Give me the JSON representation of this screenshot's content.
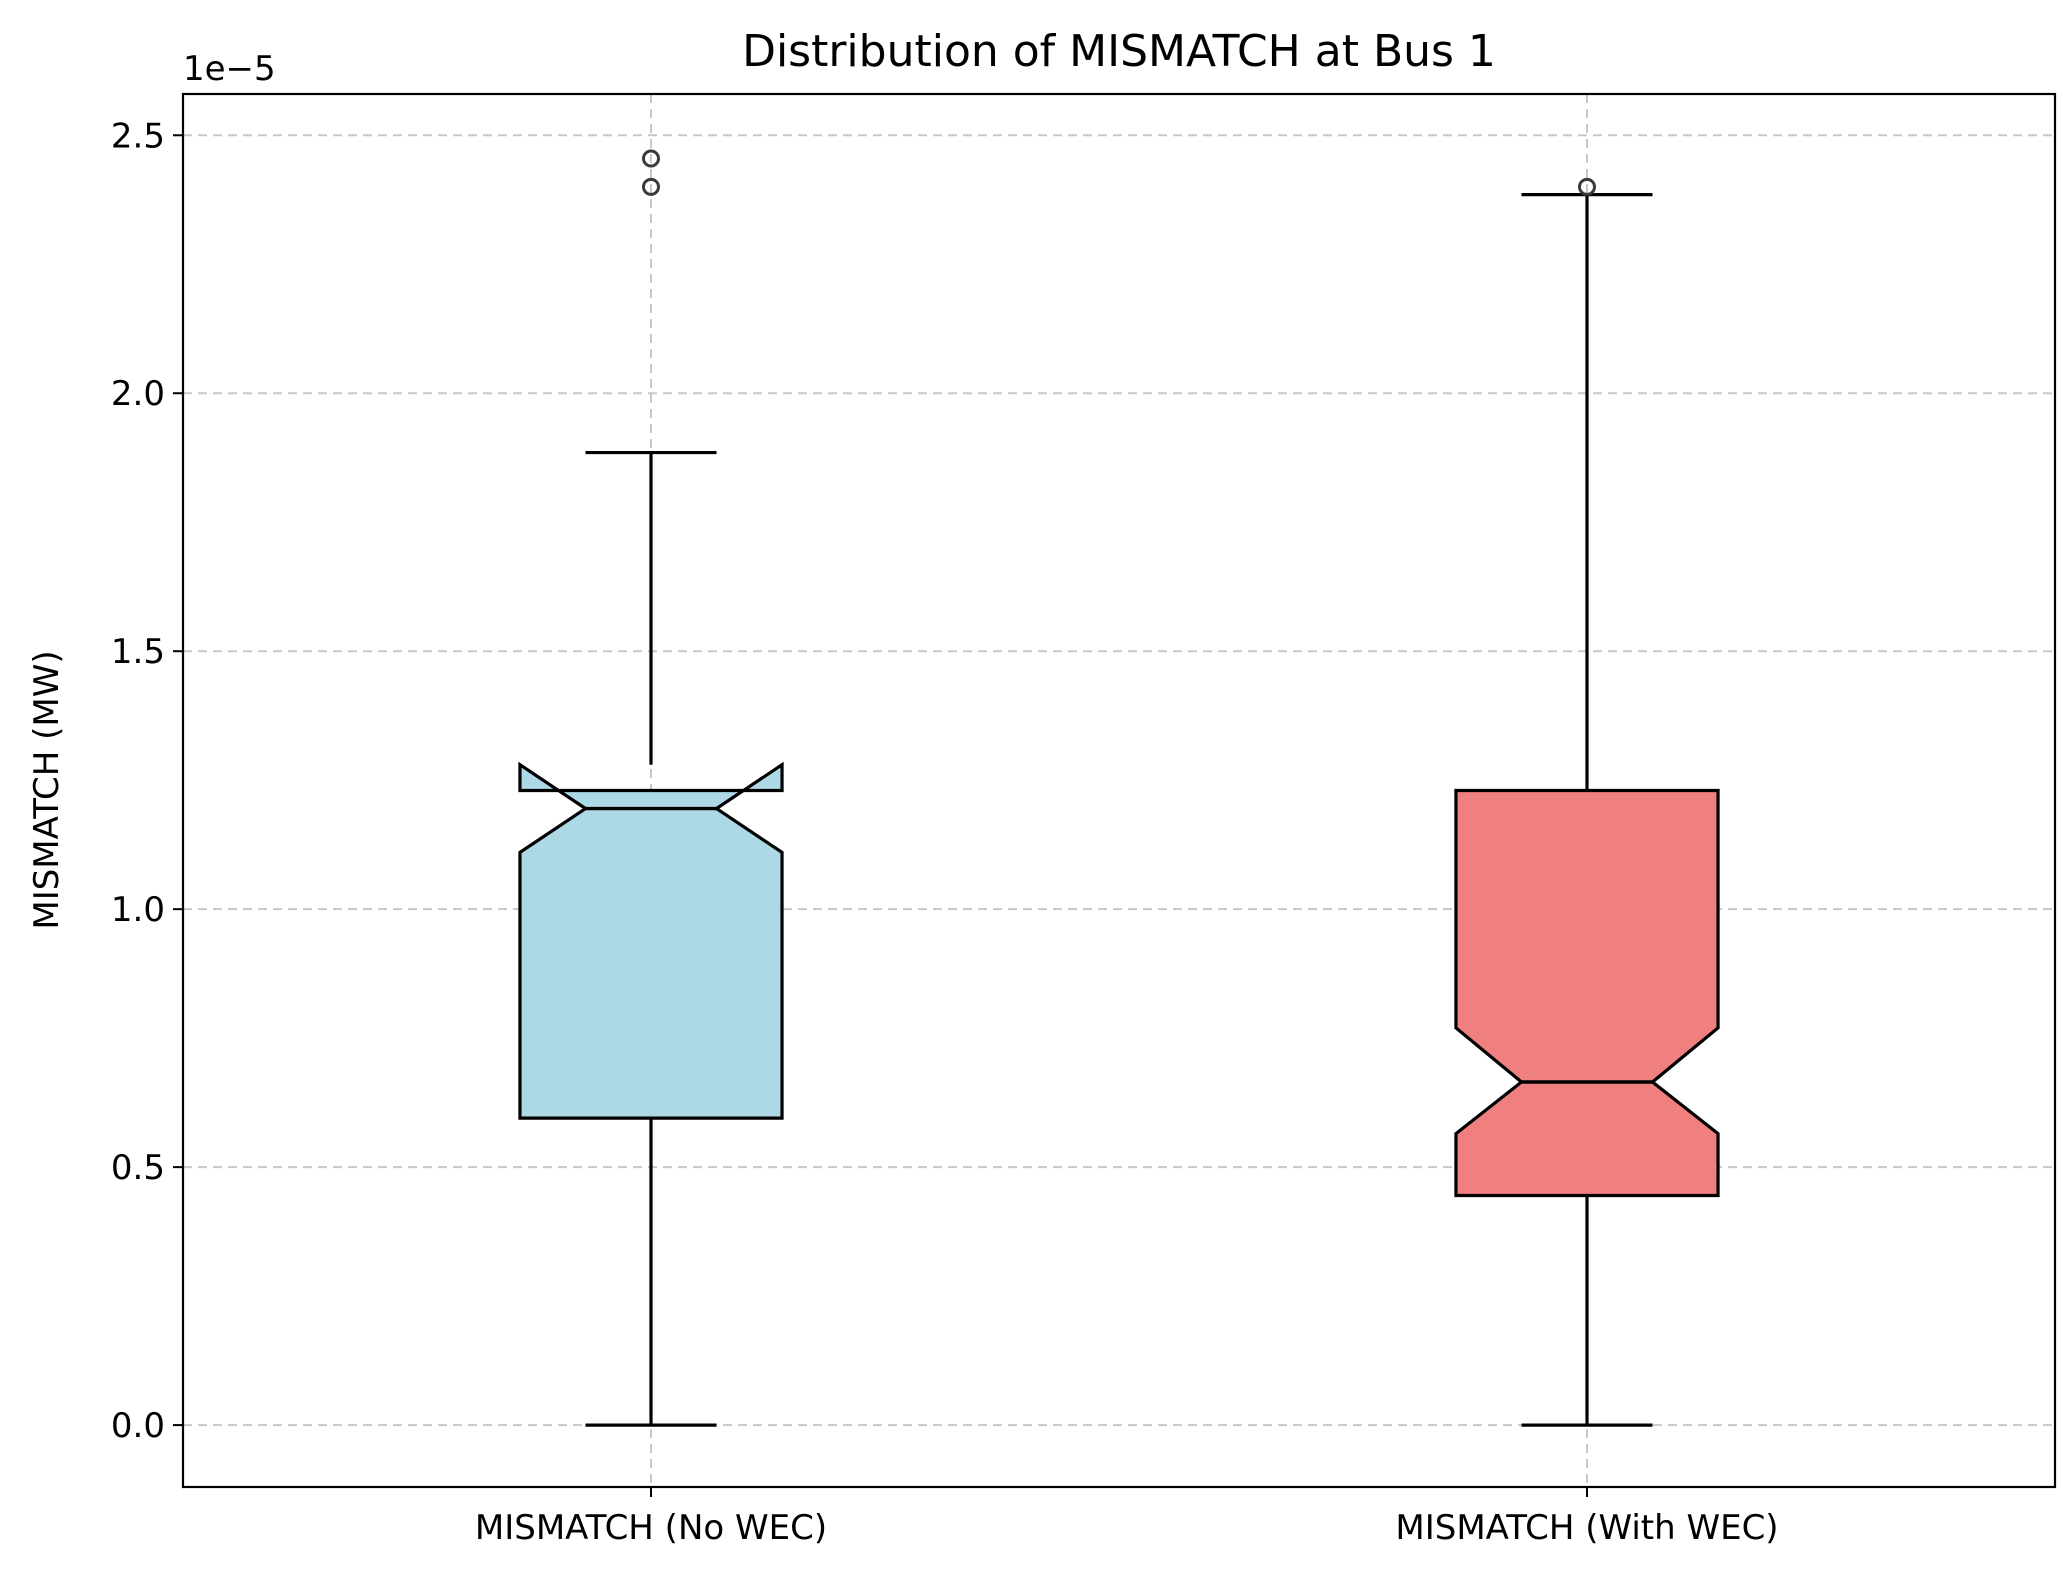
{
  "chart_data": {
    "type": "box",
    "title": "Distribution of MISMATCH at Bus 1",
    "ylabel": "MISMATCH (MW)",
    "xlabel": "",
    "y_offset_text": "1e−5",
    "y_multiplier": 1e-05,
    "ylim": [
      -0.12,
      2.58
    ],
    "yticks": [
      0.0,
      0.5,
      1.0,
      1.5,
      2.0,
      2.5
    ],
    "ytick_labels": [
      "0.0",
      "0.5",
      "1.0",
      "1.5",
      "2.0",
      "2.5"
    ],
    "grid": true,
    "notched": true,
    "categories": [
      "MISMATCH (No WEC)",
      "MISMATCH (With WEC)"
    ],
    "boxes": [
      {
        "label": "MISMATCH (No WEC)",
        "whisker_low": 0.0,
        "q1": 0.595,
        "median": 1.195,
        "q3": 1.23,
        "whisker_high": 1.885,
        "notch_low": 1.11,
        "notch_high": 1.28,
        "outliers": [
          2.4,
          2.455
        ],
        "color": "#add8e6"
      },
      {
        "label": "MISMATCH (With WEC)",
        "whisker_low": 0.0,
        "q1": 0.445,
        "median": 0.665,
        "q3": 1.23,
        "whisker_high": 2.385,
        "notch_low": 0.565,
        "notch_high": 0.77,
        "outliers": [
          2.4
        ],
        "color": "#f08080"
      }
    ]
  }
}
